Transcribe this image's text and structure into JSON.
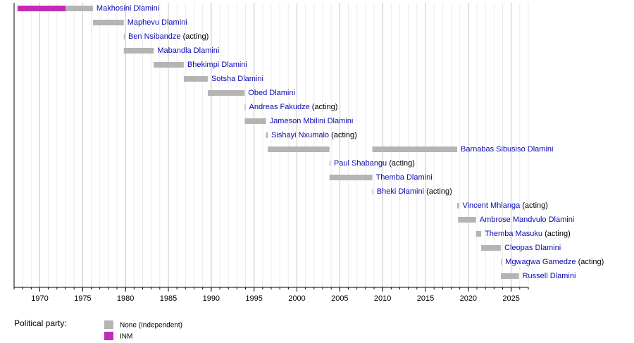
{
  "chart_data": {
    "type": "timeline",
    "xlim": [
      1967,
      2027
    ],
    "xticks": [
      1970,
      1975,
      1980,
      1985,
      1990,
      1995,
      2000,
      2005,
      2010,
      2015,
      2020,
      2025
    ],
    "minor_xticks": [
      1967,
      1968,
      1969,
      1970,
      1971,
      1972,
      1973,
      1974,
      1975,
      1976,
      1977,
      1978,
      1979,
      1980,
      1981,
      1982,
      1983,
      1984,
      1985,
      1986,
      1987,
      1988,
      1989,
      1990,
      1991,
      1992,
      1993,
      1994,
      1995,
      1996,
      1997,
      1998,
      1999,
      2000,
      2001,
      2002,
      2003,
      2004,
      2005,
      2006,
      2007,
      2008,
      2009,
      2010,
      2011,
      2012,
      2013,
      2014,
      2015,
      2016,
      2017,
      2018,
      2019,
      2020,
      2021,
      2022,
      2023,
      2024,
      2025,
      2026,
      2027
    ],
    "grid": true,
    "legend_title": "Political party:",
    "parties": [
      {
        "name": "None (Independent)",
        "color": "#b4b4b4"
      },
      {
        "name": "INM",
        "color": "#c22bb5"
      }
    ],
    "rows": [
      {
        "name": "Makhosini Dlamini",
        "segments": [
          {
            "start": 1967.4,
            "end": 1973.0,
            "party": "INM"
          },
          {
            "start": 1973.0,
            "end": 1976.2,
            "party": "None (Independent)"
          }
        ]
      },
      {
        "name": "Maphevu Dlamini",
        "segments": [
          {
            "start": 1976.2,
            "end": 1979.8,
            "party": "None (Independent)"
          }
        ]
      },
      {
        "name": "Ben Nsibandze",
        "note": "(acting)",
        "segments": [
          {
            "start": 1979.8,
            "end": 1979.9,
            "party": "None (Independent)"
          }
        ]
      },
      {
        "name": "Mabandla Dlamini",
        "segments": [
          {
            "start": 1979.8,
            "end": 1983.3,
            "party": "None (Independent)"
          }
        ]
      },
      {
        "name": "Bhekimpi Dlamini",
        "segments": [
          {
            "start": 1983.3,
            "end": 1986.8,
            "party": "None (Independent)"
          }
        ]
      },
      {
        "name": "Sotsha Dlamini",
        "segments": [
          {
            "start": 1986.8,
            "end": 1989.6,
            "party": "None (Independent)"
          }
        ]
      },
      {
        "name": "Obed Dlamini",
        "segments": [
          {
            "start": 1989.6,
            "end": 1993.9,
            "party": "None (Independent)"
          }
        ]
      },
      {
        "name": "Andreas Fakudze",
        "note": "(acting)",
        "segments": [
          {
            "start": 1993.9,
            "end": 1994.0,
            "party": "None (Independent)"
          }
        ]
      },
      {
        "name": "Jameson Mbilini Dlamini",
        "segments": [
          {
            "start": 1993.9,
            "end": 1996.4,
            "party": "None (Independent)"
          }
        ]
      },
      {
        "name": "Sishayi Nxumalo",
        "note": "(acting)",
        "segments": [
          {
            "start": 1996.4,
            "end": 1996.6,
            "party": "None (Independent)"
          }
        ]
      },
      {
        "name": "Barnabas Sibusiso Dlamini",
        "segments": [
          {
            "start": 1996.6,
            "end": 2003.8,
            "party": "None (Independent)"
          },
          {
            "start": 2008.8,
            "end": 2018.7,
            "party": "None (Independent)"
          }
        ]
      },
      {
        "name": "Paul Shabangu",
        "note": "(acting)",
        "segments": [
          {
            "start": 2003.8,
            "end": 2003.9,
            "party": "None (Independent)"
          }
        ]
      },
      {
        "name": "Themba Dlamini",
        "segments": [
          {
            "start": 2003.8,
            "end": 2008.8,
            "party": "None (Independent)"
          }
        ]
      },
      {
        "name": "Bheki Dlamini",
        "note": "(acting)",
        "segments": [
          {
            "start": 2008.8,
            "end": 2008.9,
            "party": "None (Independent)"
          }
        ]
      },
      {
        "name": "Vincent Mhlanga",
        "note": "(acting)",
        "segments": [
          {
            "start": 2018.7,
            "end": 2018.9,
            "party": "None (Independent)"
          }
        ]
      },
      {
        "name": "Ambrose Mandvulo Dlamini",
        "segments": [
          {
            "start": 2018.8,
            "end": 2020.9,
            "party": "None (Independent)"
          }
        ]
      },
      {
        "name": "Themba Masuku",
        "note": "(acting)",
        "segments": [
          {
            "start": 2020.9,
            "end": 2021.5,
            "party": "None (Independent)"
          }
        ]
      },
      {
        "name": "Cleopas Dlamini",
        "segments": [
          {
            "start": 2021.5,
            "end": 2023.8,
            "party": "None (Independent)"
          }
        ]
      },
      {
        "name": "Mgwagwa Gamedze",
        "note": "(acting)",
        "segments": [
          {
            "start": 2023.8,
            "end": 2023.9,
            "party": "None (Independent)"
          }
        ]
      },
      {
        "name": "Russell Dlamini",
        "segments": [
          {
            "start": 2023.8,
            "end": 2025.9,
            "party": "None (Independent)"
          }
        ]
      }
    ]
  }
}
